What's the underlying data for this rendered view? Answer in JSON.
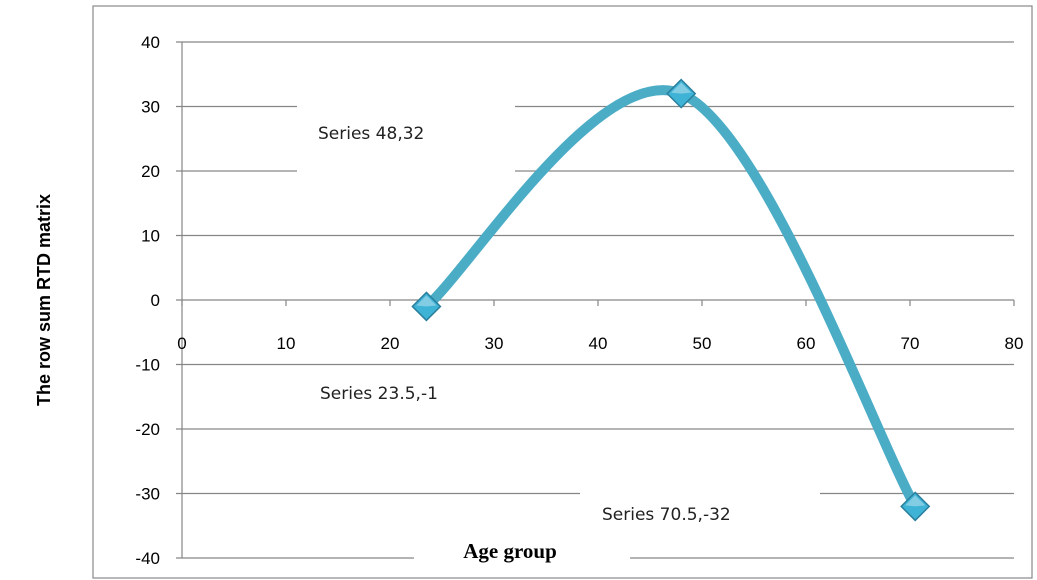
{
  "chart_data": {
    "type": "scatter",
    "title": "",
    "xlabel": "Age group",
    "ylabel": "The row sum RTD matrix",
    "xlim": [
      0,
      80
    ],
    "ylim": [
      -40,
      40
    ],
    "x_ticks": [
      "0",
      "10",
      "20",
      "30",
      "40",
      "50",
      "60",
      "70",
      "80"
    ],
    "y_ticks": [
      "40",
      "30",
      "20",
      "10",
      "0",
      "-10",
      "-20",
      "-30",
      "-40"
    ],
    "grid": "horizontal",
    "smooth_line": true,
    "colors": {
      "line": "#4bacc6",
      "marker": "#3fb3d6",
      "marker_edge": "#2a7f9c"
    },
    "series": [
      {
        "points": [
          {
            "x": 23.5,
            "y": -1
          },
          {
            "x": 48,
            "y": 32
          },
          {
            "x": 70.5,
            "y": -32
          }
        ]
      }
    ],
    "data_labels": [
      "Series 23.5,-1",
      "Series 48,32",
      "Series 70.5,-32"
    ]
  }
}
